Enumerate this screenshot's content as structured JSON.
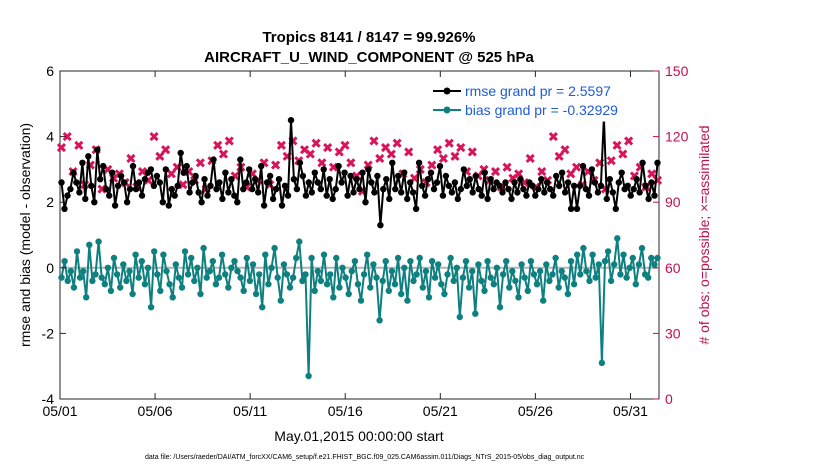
{
  "chart_data": {
    "type": "line",
    "title": "Tropics 8141 / 8147 = 99.926%",
    "subtitle": "AIRCRAFT_U_WIND_COMPONENT @ 525 hPa",
    "xlabel": "May.01,2015 00:00:00 start",
    "ylabel": "rmse and bias (model - observation)",
    "y2label": "# of obs: o=possible; ×=assimilated",
    "footer": "data file: /Users/raeder/DAI/ATM_forcXX/CAM6_setup/f.e21.FHIST_BGC.f09_025.CAM6assim.011/Diags_NTrS_2015-05/obs_diag_output.nc",
    "xlim": [
      0,
      31.5
    ],
    "ylim": [
      -4,
      6
    ],
    "y2lim": [
      0,
      150
    ],
    "xtick_labels": [
      "05/01",
      "05/06",
      "05/11",
      "05/16",
      "05/21",
      "05/26",
      "05/31"
    ],
    "xtick_values": [
      0,
      5,
      10,
      15,
      20,
      25,
      30
    ],
    "ytick_labels": [
      "-4",
      "-2",
      "0",
      "2",
      "4",
      "6"
    ],
    "ytick_values": [
      -4,
      -2,
      0,
      2,
      4,
      6
    ],
    "y2tick_labels": [
      "0",
      "30",
      "60",
      "90",
      "120",
      "150"
    ],
    "y2tick_values": [
      0,
      30,
      60,
      90,
      120,
      150
    ],
    "legend": [
      "rmse grand pr = 2.5597",
      "bias grand pr = -0.32929"
    ],
    "legend_position": "top-right",
    "colors": {
      "rmse": "#000000",
      "bias": "#0f8080",
      "obs": "#d8145a",
      "zero_line": "#b4b4b4"
    },
    "series": [
      {
        "name": "rmse grand pr = 2.5597",
        "axis": "left",
        "values": [
          2.6,
          1.8,
          2.2,
          2.4,
          2.9,
          2.6,
          2.3,
          3.2,
          2.1,
          3.4,
          2.5,
          2.0,
          3.6,
          2.7,
          3.1,
          2.4,
          2.2,
          2.9,
          1.9,
          2.5,
          2.8,
          2.6,
          2.0,
          2.4,
          3.1,
          2.4,
          2.6,
          2.2,
          2.7,
          2.9,
          3.0,
          2.5,
          2.8,
          2.6,
          2.0,
          3.0,
          1.9,
          2.4,
          2.2,
          2.5,
          3.5,
          2.9,
          3.1,
          2.3,
          2.6,
          2.8,
          2.3,
          2.0,
          2.7,
          2.2,
          2.5,
          3.3,
          2.4,
          2.6,
          2.1,
          2.9,
          2.3,
          2.7,
          2.2,
          2.0,
          3.3,
          2.4,
          2.6,
          3.0,
          2.4,
          2.7,
          2.3,
          3.1,
          1.9,
          2.6,
          2.8,
          2.1,
          2.4,
          2.7,
          1.9,
          2.5,
          2.2,
          4.5,
          2.7,
          2.4,
          3.2,
          2.8,
          2.2,
          2.6,
          2.3,
          2.9,
          2.6,
          2.4,
          3.0,
          2.2,
          2.7,
          2.1,
          2.4,
          3.1,
          2.6,
          2.9,
          2.2,
          2.8,
          2.3,
          2.7,
          2.4,
          2.9,
          2.0,
          3.0,
          2.6,
          2.3,
          2.8,
          1.3,
          2.4,
          2.7,
          2.1,
          3.2,
          2.4,
          2.8,
          2.3,
          2.9,
          2.1,
          2.6,
          2.3,
          1.8,
          3.2,
          2.5,
          2.2,
          2.7,
          2.9,
          2.4,
          2.6,
          3.1,
          2.2,
          2.8,
          2.5,
          2.3,
          2.6,
          2.1,
          2.4,
          3.0,
          2.5,
          2.7,
          2.3,
          2.8,
          2.4,
          2.2,
          2.9,
          2.1,
          2.7,
          2.4,
          2.6,
          2.5,
          2.3,
          2.6,
          2.4,
          2.1,
          2.6,
          2.3,
          2.7,
          2.4,
          2.2,
          2.6,
          2.5,
          2.2,
          2.4,
          2.7,
          2.3,
          2.6,
          2.4,
          2.2,
          2.8,
          2.5,
          2.9,
          2.3,
          2.6,
          1.8,
          2.5,
          1.8,
          2.5,
          3.1,
          2.4,
          2.2,
          3.0,
          2.6,
          2.3,
          2.5,
          4.6,
          2.1,
          2.7,
          2.3,
          1.8,
          2.6,
          2.9,
          2.4,
          2.5,
          2.2,
          2.4,
          2.7,
          2.3,
          3.2,
          2.5,
          2.1,
          2.6,
          2.2,
          3.2
        ]
      },
      {
        "name": "bias grand pr = -0.32929",
        "axis": "left",
        "values": [
          -0.3,
          0.2,
          -0.4,
          -0.1,
          -0.6,
          0.5,
          -0.3,
          -0.1,
          -0.9,
          0.7,
          -0.4,
          -0.2,
          0.8,
          -0.3,
          -0.5,
          0.0,
          -0.7,
          0.3,
          -0.2,
          -0.6,
          0.1,
          -0.4,
          -0.1,
          -0.8,
          0.4,
          -0.3,
          0.2,
          -0.5,
          0.0,
          -1.2,
          0.5,
          -0.2,
          -0.7,
          0.4,
          -0.1,
          -0.5,
          -0.9,
          0.1,
          -0.3,
          -0.6,
          0.5,
          -0.2,
          0.3,
          -0.4,
          0.0,
          -0.8,
          0.6,
          -0.3,
          -0.1,
          0.2,
          -0.5,
          -0.3,
          0.4,
          -0.2,
          -0.6,
          0.0,
          0.2,
          -0.1,
          -0.3,
          -0.7,
          0.3,
          -0.4,
          0.1,
          -0.8,
          -0.2,
          -1.2,
          0.4,
          -0.5,
          0.0,
          0.6,
          -0.3,
          -1.0,
          0.1,
          -0.2,
          -0.6,
          -0.3,
          0.3,
          0.8,
          -0.4,
          -0.2,
          -3.3,
          0.3,
          -0.7,
          -0.1,
          -0.4,
          0.4,
          -0.5,
          -0.2,
          -0.9,
          0.3,
          -0.6,
          0.0,
          -0.3,
          -0.8,
          -0.1,
          0.2,
          -0.5,
          -1.0,
          -0.2,
          0.4,
          -0.6,
          0.1,
          -0.3,
          -1.6,
          -0.4,
          0.2,
          -0.7,
          -0.1,
          -0.5,
          0.3,
          -0.8,
          0.0,
          -1.0,
          0.2,
          -0.4,
          -0.2,
          0.3,
          -0.6,
          -0.1,
          -0.9,
          0.2,
          -0.3,
          0.1,
          -0.5,
          -0.8,
          -0.2,
          0.3,
          -0.4,
          0.0,
          -1.5,
          -0.3,
          0.2,
          -0.6,
          -0.1,
          -1.4,
          0.1,
          -0.4,
          -0.7,
          0.2,
          -0.3,
          -0.5,
          0.0,
          -1.2,
          -0.2,
          0.2,
          -0.6,
          -0.1,
          -0.4,
          -0.9,
          0.1,
          -0.3,
          -0.7,
          0.2,
          -0.2,
          -0.5,
          -0.1,
          -1.0,
          0.1,
          -0.4,
          -0.2,
          0.3,
          -0.6,
          -0.1,
          -0.3,
          -0.8,
          0.2,
          -0.5,
          0.4,
          -0.2,
          0.6,
          -0.1,
          -0.4,
          0.4,
          -0.3,
          0.1,
          -2.9,
          0.2,
          0.5,
          -0.4,
          0.1,
          0.9,
          -0.2,
          0.4,
          -0.3,
          0.0,
          0.3,
          -0.5,
          0.1,
          0.6,
          -0.2,
          -0.3,
          0.3,
          0.1,
          0.3
        ]
      },
      {
        "name": "obs assimilated",
        "axis": "right",
        "marker": "x",
        "values": [
          115,
          110,
          120,
          95,
          104,
          108,
          116,
          111,
          98,
          113,
          107,
          102,
          114,
          109,
          96,
          118,
          105,
          112,
          101,
          117,
          103,
          108,
          99,
          115,
          110,
          106,
          97,
          113,
          104,
          116,
          100,
          108,
          120,
          102,
          111,
          95,
          114,
          107,
          103,
          118,
          106,
          110,
          98,
          115,
          104,
          112,
          100,
          117,
          108,
          103,
          96,
          113,
          109,
          101,
          116,
          105,
          112,
          99,
          118,
          107,
          102,
          114,
          106,
          110,
          97,
          117,
          103,
          111,
          100,
          115,
          108,
          104,
          98,
          113,
          107,
          102,
          116,
          105,
          111,
          100,
          118,
          104,
          109,
          97,
          114,
          106,
          112,
          101,
          117,
          103,
          108,
          99,
          115,
          110,
          106,
          97,
          113,
          104,
          116,
          100,
          108,
          120,
          102,
          111,
          95,
          114,
          107,
          103,
          118,
          106,
          110,
          98,
          115,
          104,
          112,
          100,
          117,
          108,
          103,
          96,
          113,
          109,
          101,
          116,
          105,
          112,
          99,
          118,
          107,
          102,
          114,
          106,
          110,
          97,
          117,
          103,
          111,
          100,
          115,
          108,
          104,
          98,
          113,
          107,
          102,
          116,
          105,
          111,
          100,
          118,
          104,
          109,
          97,
          114,
          106,
          112,
          101,
          117,
          103,
          108,
          99,
          115,
          110,
          106,
          97,
          113,
          104,
          116,
          100,
          108,
          120,
          102,
          111,
          95,
          114,
          107,
          103,
          118,
          106,
          110,
          98,
          115,
          104,
          112,
          100,
          117,
          108,
          103,
          96,
          113,
          109,
          101,
          116,
          105,
          112,
          99,
          118,
          107,
          102,
          114,
          106,
          110,
          97,
          117,
          103,
          111,
          100
        ]
      }
    ]
  }
}
